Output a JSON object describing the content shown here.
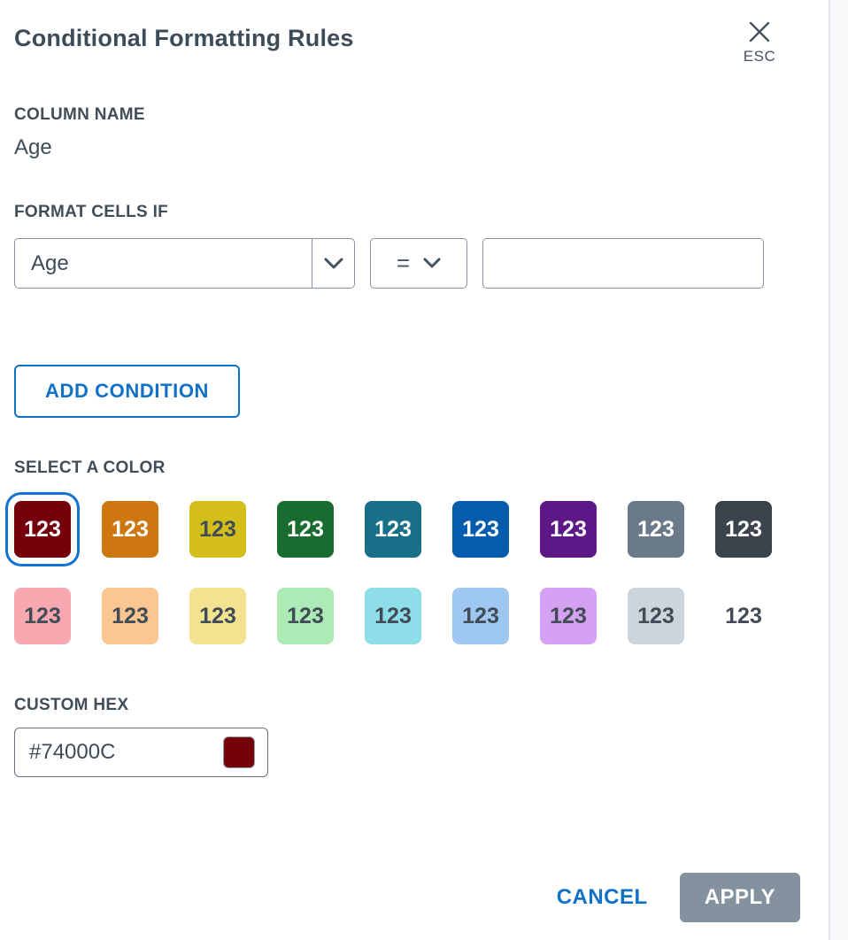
{
  "panel": {
    "title": "Conditional Formatting Rules",
    "esc_label": "ESC"
  },
  "column_name": {
    "label": "COLUMN NAME",
    "value": "Age"
  },
  "format_cells_if": {
    "label": "FORMAT CELLS IF",
    "column_select_value": "Age",
    "operator_select_value": "=",
    "value_input_value": "",
    "value_input_placeholder": ""
  },
  "add_condition_label": "ADD CONDITION",
  "select_color": {
    "label": "SELECT A COLOR",
    "swatch_label": "123",
    "row1": [
      {
        "hex": "#74000C",
        "text_color": "#ffffff",
        "selected": true
      },
      {
        "hex": "#CE7710",
        "text_color": "#ffffff",
        "selected": false
      },
      {
        "hex": "#D4BE19",
        "text_color": "#414c56",
        "selected": false
      },
      {
        "hex": "#186C30",
        "text_color": "#ffffff",
        "selected": false
      },
      {
        "hex": "#177088",
        "text_color": "#ffffff",
        "selected": false
      },
      {
        "hex": "#055CAD",
        "text_color": "#ffffff",
        "selected": false
      },
      {
        "hex": "#5D1786",
        "text_color": "#ffffff",
        "selected": false
      },
      {
        "hex": "#6B7A8B",
        "text_color": "#ffffff",
        "selected": false
      },
      {
        "hex": "#3B434D",
        "text_color": "#ffffff",
        "selected": false
      }
    ],
    "row2": [
      {
        "hex": "#F7A8B1",
        "text_color": "#414c56",
        "selected": false
      },
      {
        "hex": "#FBC68F",
        "text_color": "#414c56",
        "selected": false
      },
      {
        "hex": "#F3E390",
        "text_color": "#414c56",
        "selected": false
      },
      {
        "hex": "#ACEBB5",
        "text_color": "#414c56",
        "selected": false
      },
      {
        "hex": "#8DDEE9",
        "text_color": "#414c56",
        "selected": false
      },
      {
        "hex": "#9EC7F1",
        "text_color": "#414c56",
        "selected": false
      },
      {
        "hex": "#D5A1F2",
        "text_color": "#414c56",
        "selected": false
      },
      {
        "hex": "#CDD4DC",
        "text_color": "#414c56",
        "selected": false
      },
      {
        "hex": null,
        "text_color": "#414c56",
        "selected": false
      }
    ]
  },
  "custom_hex": {
    "label": "CUSTOM HEX",
    "value": "#74000C",
    "swatch_hex": "#74000C"
  },
  "footer": {
    "cancel_label": "CANCEL",
    "apply_label": "APPLY"
  },
  "colors": {
    "accent_blue": "#1072c6",
    "selection_ring_blue": "#1273d2",
    "disabled_gray": "#84919e",
    "text_slate": "#3e4b59"
  }
}
